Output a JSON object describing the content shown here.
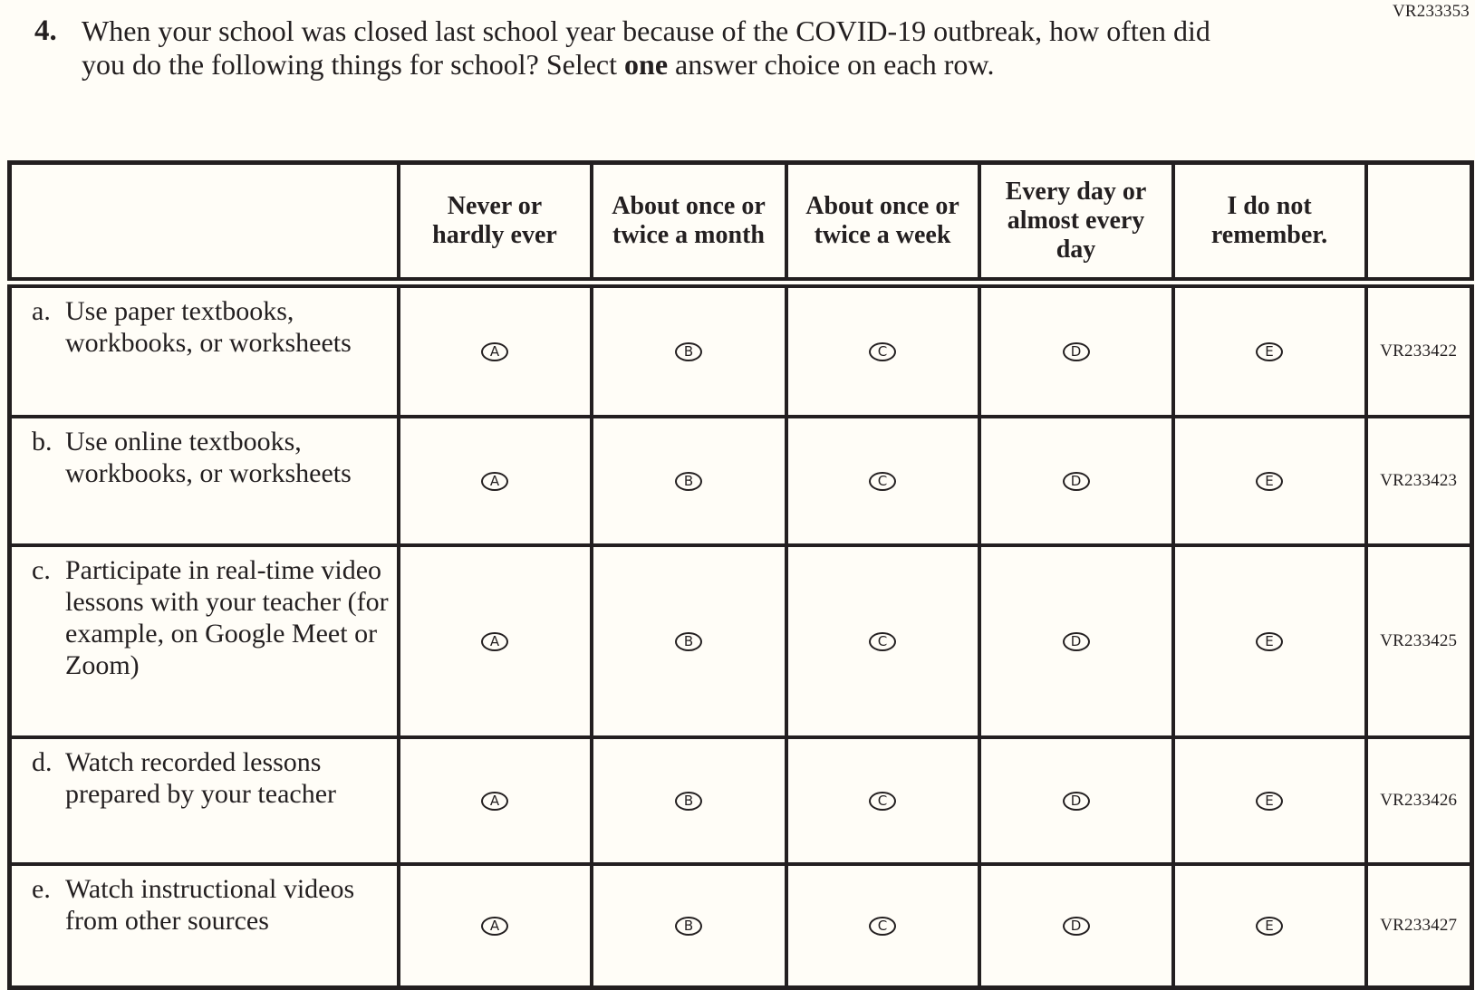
{
  "page": {
    "code_top_right": "VR233353",
    "question": {
      "number": "4.",
      "text_before_bold": "When your school was closed last school year because of the COVID-19 outbreak, how often did you do the following things for school? Select ",
      "bold_word": "one",
      "text_after_bold": " answer choice on each row."
    }
  },
  "table": {
    "column_headers": [
      "Never or hardly ever",
      "About once or twice a month",
      "About once or twice a week",
      "Every day or almost every day",
      "I do not remember."
    ],
    "options": [
      "A",
      "B",
      "C",
      "D",
      "E"
    ],
    "rows": [
      {
        "letter": "a.",
        "label": "Use paper textbooks, workbooks, or worksheets",
        "code": "VR233422"
      },
      {
        "letter": "b.",
        "label": "Use online textbooks, workbooks, or worksheets",
        "code": "VR233423"
      },
      {
        "letter": "c.",
        "label": "Participate in real-time video lessons with your teacher (for example, on Google Meet or Zoom)",
        "code": "VR233425"
      },
      {
        "letter": "d.",
        "label": "Watch recorded lessons prepared by your teacher",
        "code": "VR233426"
      },
      {
        "letter": "e.",
        "label": "Watch instructional videos from other sources",
        "code": "VR233427"
      }
    ]
  },
  "colors": {
    "ink": "#231f20",
    "paper": "#fffdf7"
  }
}
